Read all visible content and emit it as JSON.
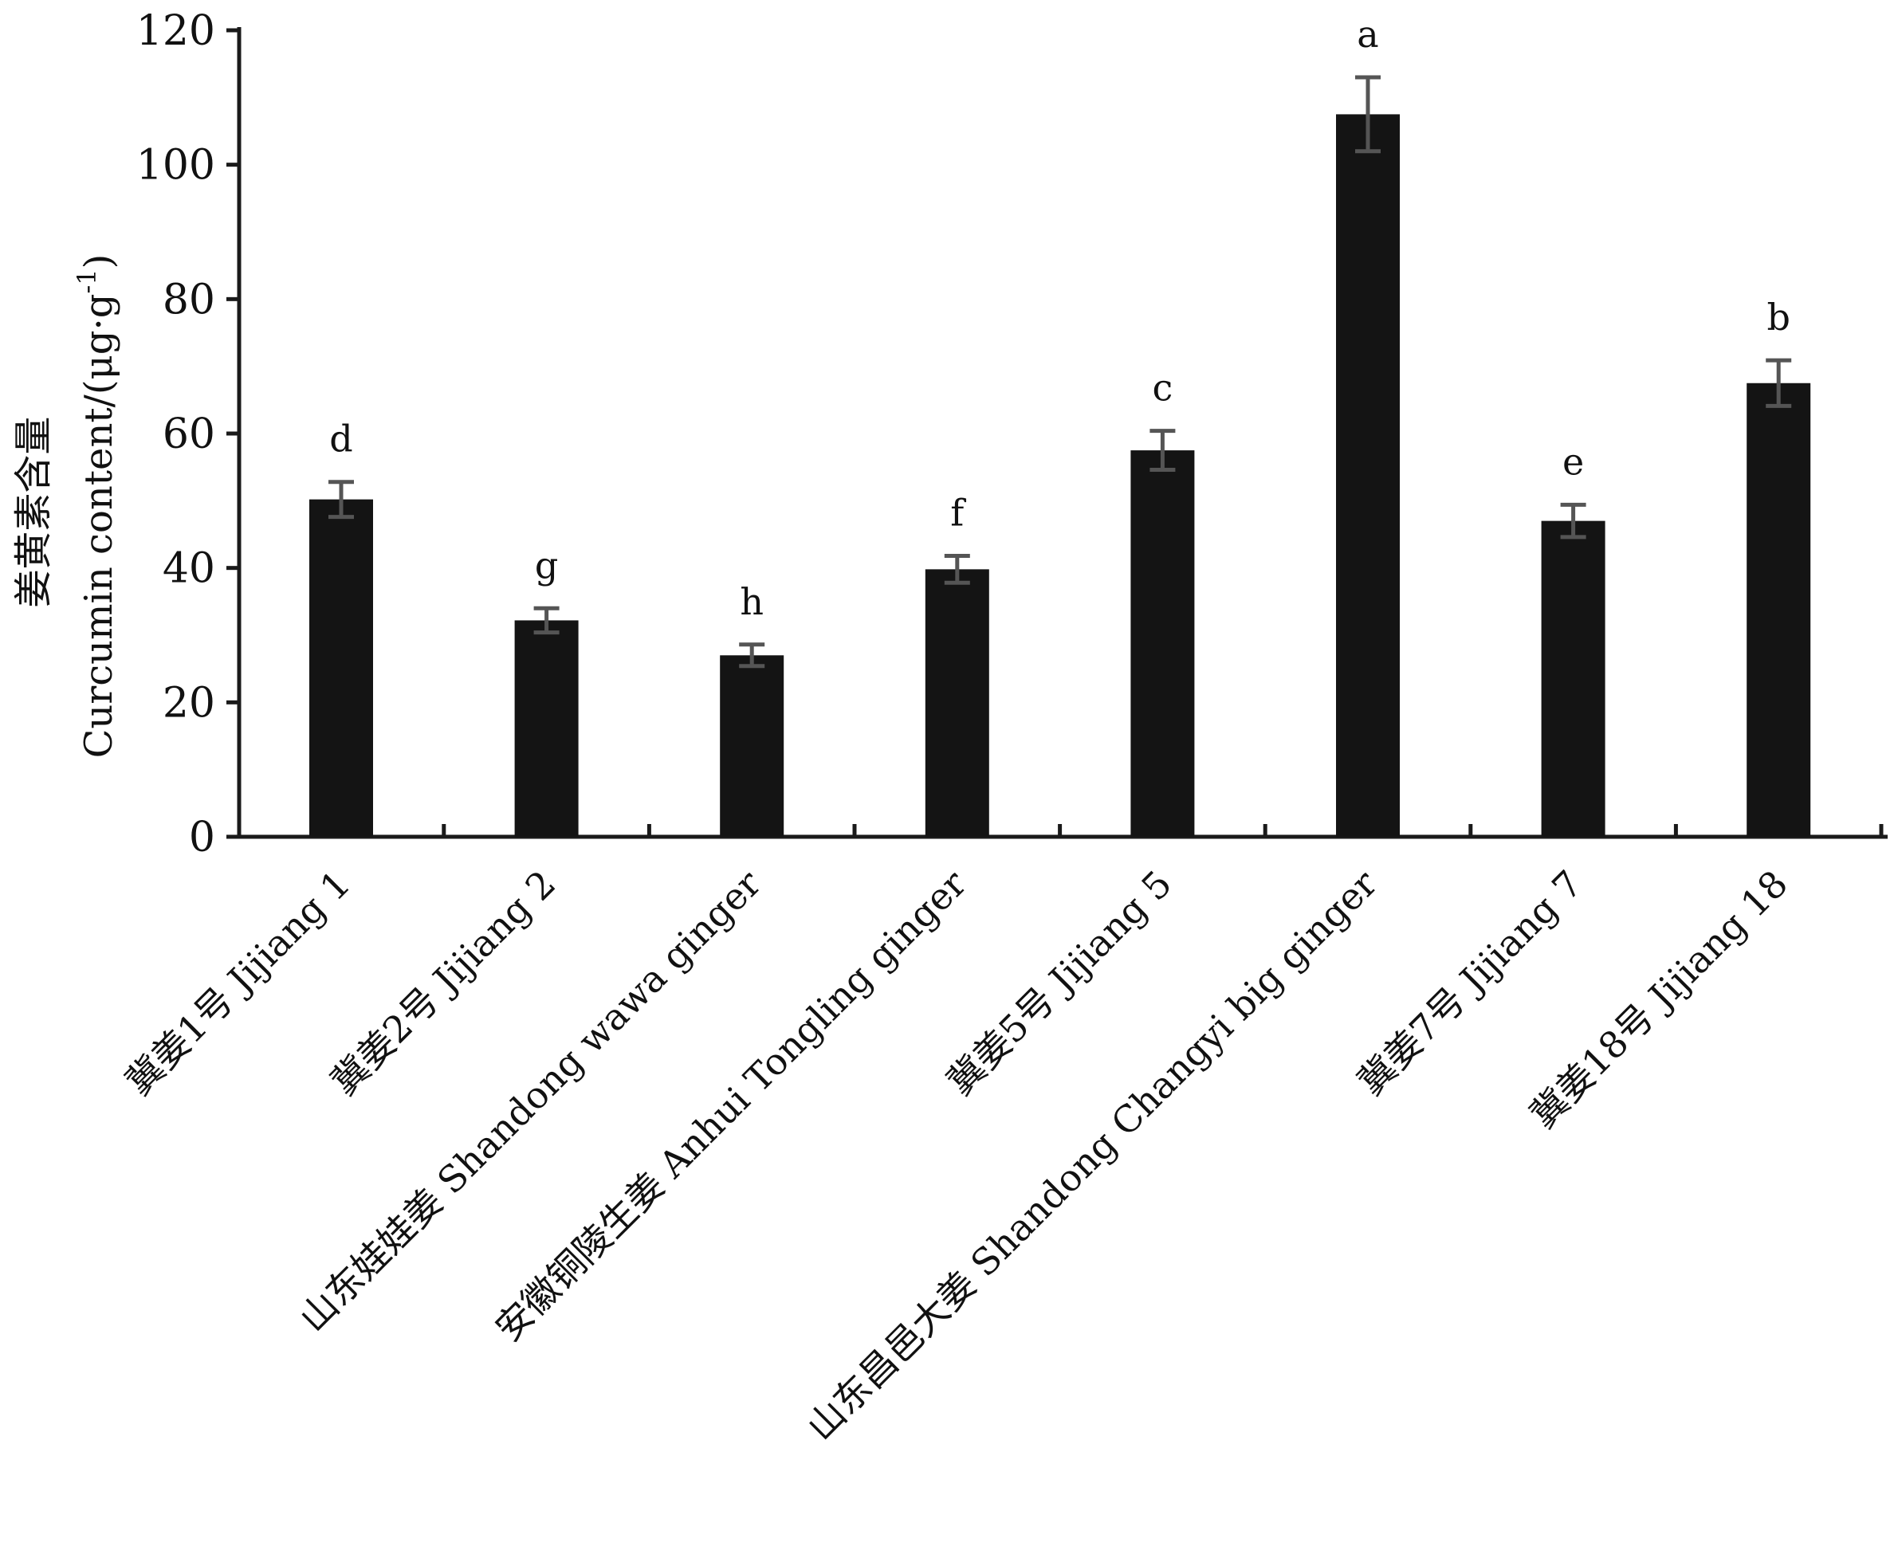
{
  "chart_data": {
    "type": "bar",
    "ylabel_cn": "姜黄素含量",
    "ylabel_en": "Curcumin content/(μg·g",
    "ylabel_unit_sup": "-1",
    "ylabel_close": ")",
    "xlabel": "",
    "ylim": [
      0,
      120
    ],
    "yticks": [
      "0",
      "20",
      "40",
      "60",
      "80",
      "100",
      "120"
    ],
    "grid": false,
    "categories": [
      "冀姜1号 Jijiang 1",
      "冀姜2号 Jijiang 2",
      "山东娃娃姜 Shandong wawa ginger",
      "安徽铜陵生姜 Anhui Tongling ginger",
      "冀姜5号 Jijiang 5",
      "山东昌邑大姜 Shandong Changyi big ginger",
      "冀姜7号 Jijiang 7",
      "冀姜18号 Jijiang 18"
    ],
    "values": [
      50.2,
      32.2,
      27.0,
      39.8,
      57.5,
      107.5,
      47.0,
      67.5
    ],
    "errors": [
      2.6,
      1.8,
      1.6,
      2.0,
      2.9,
      5.5,
      2.4,
      3.4
    ],
    "significance": [
      "d",
      "g",
      "h",
      "f",
      "c",
      "a",
      "e",
      "b"
    ],
    "colors": {
      "bar": "#141414",
      "error_bar": "#555555",
      "axis": "#1a1a1a"
    }
  }
}
